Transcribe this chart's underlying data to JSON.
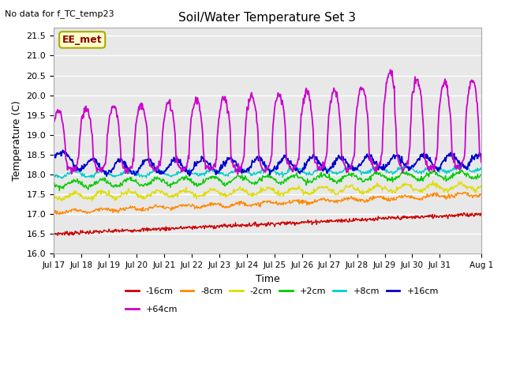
{
  "title": "Soil/Water Temperature Set 3",
  "no_data_text": "No data for f_TC_temp23",
  "ylabel": "Temperature (C)",
  "xlabel": "Time",
  "ylim": [
    16.0,
    21.7
  ],
  "yticks": [
    16.0,
    16.5,
    17.0,
    17.5,
    18.0,
    18.5,
    19.0,
    19.5,
    20.0,
    20.5,
    21.0,
    21.5
  ],
  "xtick_labels": [
    "Jul 17",
    "Jul 18",
    "Jul 19",
    "Jul 20",
    "Jul 21",
    "Jul 22",
    "Jul 23",
    "Jul 24",
    "Jul 25",
    "Jul 26",
    "Jul 27",
    "Jul 28",
    "Jul 29",
    "Jul 30",
    "Jul 31",
    "Aug 1"
  ],
  "series_colors": {
    "-16cm": "#cc0000",
    "-8cm": "#ff8800",
    "-2cm": "#dddd00",
    "+2cm": "#00cc00",
    "+8cm": "#00cccc",
    "+16cm": "#0000cc",
    "+64cm": "#cc00cc"
  },
  "legend_label": "EE_met",
  "legend_box_facecolor": "#ffffcc",
  "legend_box_edgecolor": "#aaaa00",
  "bg_color": "#ffffff",
  "plot_bg_color": "#e8e8e8"
}
